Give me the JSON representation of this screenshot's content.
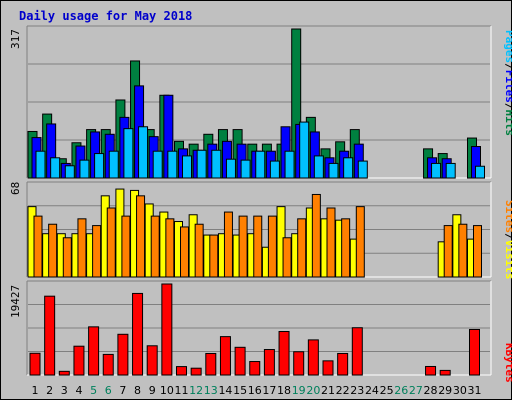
{
  "window_title": "Daily usage for May 2018",
  "colors": {
    "hits": "#008040",
    "files": "#0000ff",
    "pages": "#00c0ff",
    "visits": "#ffff00",
    "sites": "#ff8000",
    "kbytes": "#ff0000",
    "weekend_day": "#00805c",
    "weekday": "#000000",
    "title": "#0000cc",
    "background": "#c0c0c0"
  },
  "chart_data": {
    "type": "bar",
    "title": "Daily usage for May 2018",
    "categories": [
      "1",
      "2",
      "3",
      "4",
      "5",
      "6",
      "7",
      "8",
      "9",
      "10",
      "11",
      "12",
      "13",
      "14",
      "15",
      "16",
      "17",
      "18",
      "19",
      "20",
      "21",
      "22",
      "23",
      "24",
      "25",
      "26",
      "27",
      "28",
      "29",
      "30",
      "31"
    ],
    "weekend_days": [
      "5",
      "6",
      "12",
      "13",
      "19",
      "20",
      "26",
      "27"
    ],
    "panels": [
      {
        "id": "hits_files_pages",
        "max_label": "317",
        "ylim": [
          0,
          317
        ],
        "legend": [
          "Pages",
          "/",
          "Files",
          "/",
          "Hits"
        ],
        "series": [
          {
            "name": "Hits",
            "values": [
              99,
              136,
              41,
              75,
              103,
              103,
              166,
              249,
              103,
              176,
              78,
              72,
              93,
              103,
              103,
              72,
              72,
              72,
              317,
              129,
              62,
              77,
              103,
              0,
              0,
              0,
              0,
              62,
              52,
              0,
              85
            ]
          },
          {
            "name": "Files",
            "values": [
              86,
              115,
              31,
              68,
              98,
              93,
              129,
              196,
              88,
              176,
              62,
              59,
              72,
              78,
              72,
              57,
              57,
              109,
              114,
              98,
              43,
              57,
              72,
              0,
              0,
              0,
              0,
              43,
              41,
              0,
              67
            ]
          },
          {
            "name": "Pages",
            "values": [
              57,
              43,
              26,
              38,
              52,
              57,
              105,
              109,
              57,
              57,
              47,
              59,
              59,
              40,
              38,
              57,
              36,
              57,
              119,
              47,
              31,
              43,
              36,
              0,
              0,
              0,
              0,
              31,
              31,
              0,
              25
            ]
          }
        ]
      },
      {
        "id": "visits_sites",
        "max_label": "68",
        "ylim": [
          0,
          68
        ],
        "legend": [
          "Sites",
          "/",
          "Visits"
        ],
        "series": [
          {
            "name": "Visits",
            "values": [
              52,
              32,
              32,
              32,
              32,
              60,
              65,
              64,
              54,
              48,
              41,
              46,
              31,
              32,
              31,
              32,
              22,
              52,
              32,
              51,
              43,
              42,
              28,
              0,
              0,
              0,
              0,
              0,
              26,
              46,
              28
            ]
          },
          {
            "name": "Sites",
            "values": [
              45,
              39,
              29,
              43,
              38,
              51,
              45,
              60,
              45,
              43,
              37,
              39,
              31,
              48,
              45,
              45,
              45,
              29,
              43,
              61,
              51,
              43,
              52,
              0,
              0,
              0,
              0,
              0,
              38,
              39,
              38
            ]
          }
        ]
      },
      {
        "id": "kbytes",
        "max_label": "19427",
        "ylim": [
          0,
          19427
        ],
        "legend": [
          "KBytes"
        ],
        "series": [
          {
            "name": "KBytes",
            "values": [
              4638,
              16826,
              782,
              6148,
              10281,
              4396,
              8690,
              17412,
              6240,
              19427,
              1796,
              1452,
              4596,
              8194,
              5912,
              2876,
              5440,
              9284,
              4962,
              7496,
              3024,
              4596,
              10096,
              0,
              0,
              0,
              0,
              1820,
              982,
              0,
              9720
            ]
          }
        ]
      }
    ]
  }
}
